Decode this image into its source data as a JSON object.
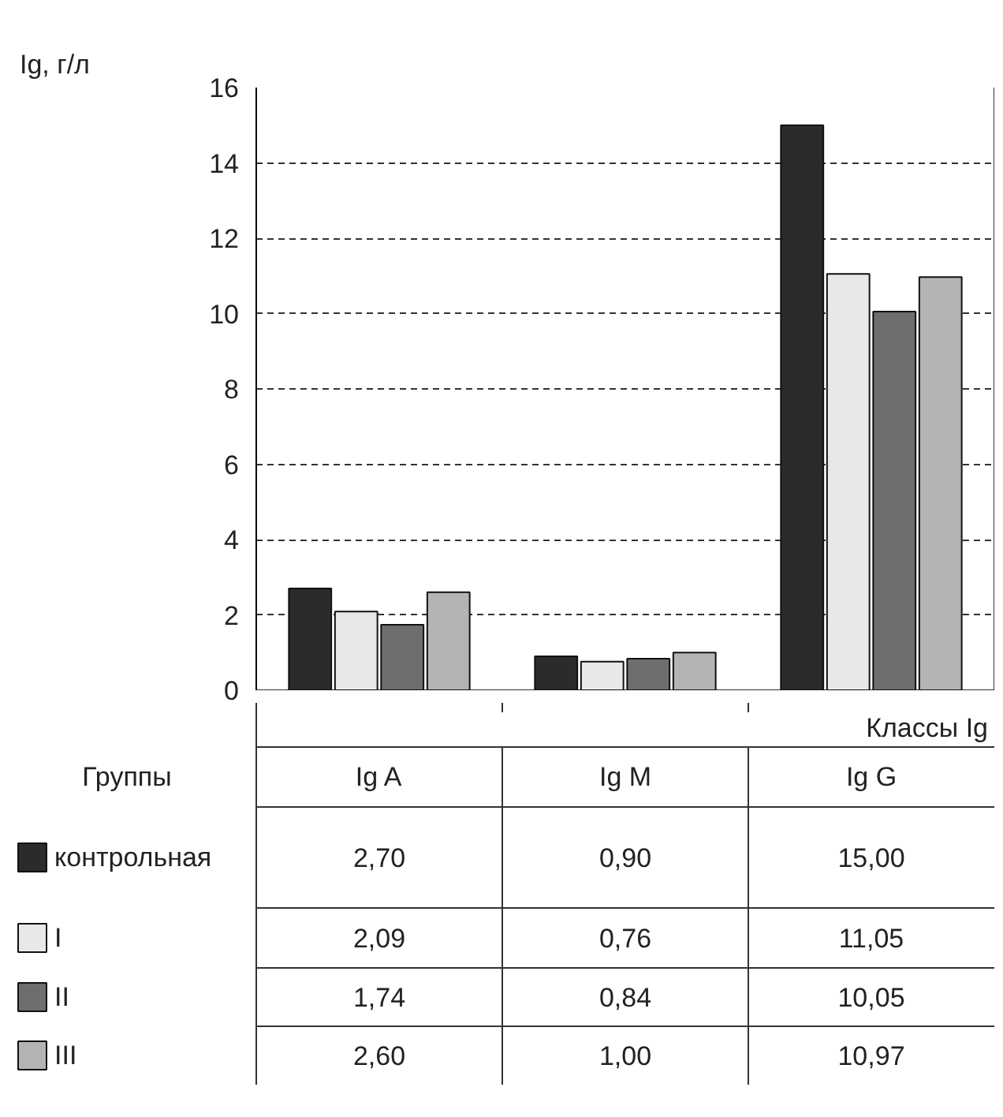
{
  "chart_data": {
    "type": "bar",
    "ylabel": "Ig, г/л",
    "xlabel": "Классы Ig",
    "legend_title": "Группы",
    "categories": [
      "Ig A",
      "Ig M",
      "Ig G"
    ],
    "series": [
      {
        "name": "контрольная",
        "color": "#2b2b2b",
        "values": [
          2.7,
          0.9,
          15.0
        ],
        "value_labels": [
          "2,70",
          "0,90",
          "15,00"
        ]
      },
      {
        "name": "I",
        "color": "#e8e8e8",
        "values": [
          2.09,
          0.76,
          11.05
        ],
        "value_labels": [
          "2,09",
          "0,76",
          "11,05"
        ]
      },
      {
        "name": "II",
        "color": "#6e6e6e",
        "values": [
          1.74,
          0.84,
          10.05
        ],
        "value_labels": [
          "1,74",
          "0,84",
          "10,05"
        ]
      },
      {
        "name": "III",
        "color": "#b4b4b4",
        "values": [
          2.6,
          1.0,
          10.97
        ],
        "value_labels": [
          "2,60",
          "1,00",
          "10,97"
        ]
      }
    ],
    "ylim": [
      0,
      16
    ],
    "yticks": [
      0,
      2,
      4,
      6,
      8,
      10,
      12,
      14,
      16
    ],
    "grid": "y",
    "legend": "bottom"
  }
}
